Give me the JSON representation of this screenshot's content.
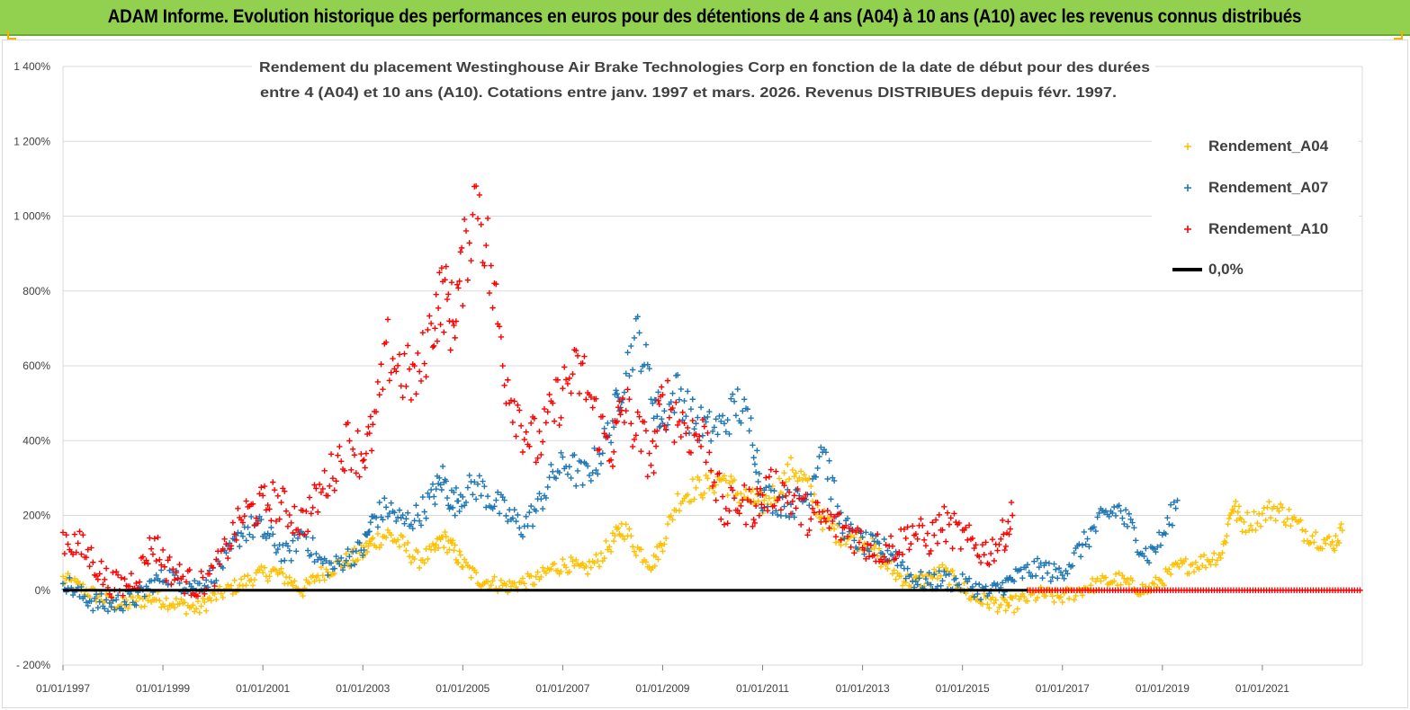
{
  "banner": {
    "title": "ADAM Informe. Evolution historique des performances en euros pour des détentions de 4 ans (A04) à 10 ans (A10) avec les revenus connus distribués"
  },
  "colors": {
    "banner_bg": "#92d050",
    "a04": "#ffc000",
    "a07": "#1f77b4",
    "a10": "#ff0000",
    "zero_line": "#000000",
    "grid": "#d9d9d9"
  },
  "chart_data": {
    "type": "scatter",
    "title_line1": "Rendement du placement Westinghouse Air Brake Technologies Corp en fonction de la date de début pour des durées",
    "title_line2": "entre 4 (A04) et 10 ans (A10). Cotations entre janv. 1997 et mars. 2026. Revenus DISTRIBUES depuis févr. 1997.",
    "x_ticks": [
      "01/01/1997",
      "01/01/1999",
      "01/01/2001",
      "01/01/2003",
      "01/01/2005",
      "01/01/2007",
      "01/01/2009",
      "01/01/2011",
      "01/01/2013",
      "01/01/2015",
      "01/01/2017",
      "01/01/2019",
      "01/01/2021"
    ],
    "x_range": [
      1997.0,
      2023.0
    ],
    "y_ticks": [
      "- 200%",
      "0%",
      "200%",
      "400%",
      "600%",
      "800%",
      "1 000%",
      "1 200%",
      "1 400%"
    ],
    "y_range": [
      -200,
      1400
    ],
    "legend": [
      {
        "key": "a04",
        "label": "Rendement_A04",
        "marker": "+"
      },
      {
        "key": "a07",
        "label": "Rendement_A07",
        "marker": "+"
      },
      {
        "key": "a10",
        "label": "Rendement_A10",
        "marker": "+"
      },
      {
        "key": "zero",
        "label": "0,0%",
        "marker": "line"
      }
    ],
    "series": [
      {
        "name": "Rendement_A04",
        "key": "a04",
        "x": [
          1997.0,
          1997.3,
          1997.6,
          1997.9,
          1998.2,
          1998.5,
          1998.8,
          1999.1,
          1999.4,
          1999.7,
          2000.0,
          2000.3,
          2000.6,
          2000.9,
          2001.2,
          2001.5,
          2001.8,
          2002.1,
          2002.4,
          2002.7,
          2003.0,
          2003.2,
          2003.5,
          2003.8,
          2004.1,
          2004.4,
          2004.6,
          2004.8,
          2005.0,
          2005.3,
          2005.6,
          2005.9,
          2006.2,
          2006.5,
          2006.8,
          2007.1,
          2007.4,
          2007.7,
          2008.0,
          2008.2,
          2008.5,
          2008.8,
          2009.0,
          2009.3,
          2009.6,
          2009.9,
          2010.2,
          2010.5,
          2010.8,
          2011.0,
          2011.3,
          2011.6,
          2011.9,
          2012.2,
          2012.5,
          2012.8,
          2013.1,
          2013.4,
          2013.7,
          2014.0,
          2014.3,
          2014.6,
          2014.9,
          2015.2,
          2015.5,
          2015.8,
          2016.0,
          2016.3,
          2016.6,
          2016.9,
          2017.2,
          2017.5,
          2017.8,
          2018.1,
          2018.4,
          2018.7,
          2019.0,
          2019.3,
          2019.6,
          2019.9,
          2020.2,
          2020.4,
          2020.6,
          2020.9,
          2021.2,
          2021.5,
          2021.8,
          2022.1,
          2022.4,
          2022.6
        ],
        "y": [
          30,
          10,
          -10,
          -30,
          -40,
          -30,
          -20,
          -30,
          -40,
          -50,
          -20,
          0,
          20,
          40,
          50,
          30,
          0,
          40,
          60,
          80,
          100,
          130,
          150,
          120,
          80,
          100,
          140,
          110,
          70,
          30,
          20,
          10,
          20,
          30,
          60,
          70,
          50,
          80,
          130,
          170,
          110,
          70,
          130,
          240,
          270,
          280,
          300,
          260,
          240,
          230,
          270,
          330,
          280,
          190,
          150,
          140,
          130,
          80,
          40,
          20,
          30,
          50,
          20,
          -20,
          -30,
          -40,
          -40,
          -20,
          -10,
          -20,
          -10,
          10,
          20,
          30,
          10,
          0,
          30,
          60,
          70,
          80,
          100,
          230,
          180,
          190,
          220,
          200,
          160,
          140,
          120,
          160
        ]
      },
      {
        "name": "Rendement_A07",
        "key": "a07",
        "x": [
          1997.0,
          1997.3,
          1997.6,
          1997.9,
          1998.2,
          1998.5,
          1998.8,
          1999.1,
          1999.4,
          1999.7,
          2000.0,
          2000.3,
          2000.6,
          2000.9,
          2001.2,
          2001.5,
          2001.8,
          2002.1,
          2002.4,
          2002.7,
          2003.0,
          2003.2,
          2003.5,
          2003.8,
          2004.1,
          2004.4,
          2004.6,
          2004.8,
          2005.0,
          2005.3,
          2005.6,
          2005.9,
          2006.2,
          2006.5,
          2006.8,
          2007.1,
          2007.4,
          2007.7,
          2008.0,
          2008.2,
          2008.5,
          2008.8,
          2009.0,
          2009.3,
          2009.6,
          2009.9,
          2010.2,
          2010.5,
          2010.8,
          2011.0,
          2011.3,
          2011.6,
          2011.9,
          2012.2,
          2012.5,
          2012.8,
          2013.1,
          2013.4,
          2013.7,
          2014.0,
          2014.3,
          2014.6,
          2014.9,
          2015.2,
          2015.5,
          2015.8,
          2016.0,
          2016.3,
          2016.6,
          2016.9,
          2017.2,
          2017.5,
          2017.8,
          2018.1,
          2018.4,
          2018.7,
          2019.0,
          2019.3
        ],
        "y": [
          30,
          -10,
          -30,
          -40,
          -30,
          -20,
          20,
          40,
          20,
          10,
          40,
          90,
          160,
          170,
          130,
          90,
          160,
          80,
          60,
          90,
          110,
          190,
          220,
          180,
          200,
          250,
          300,
          230,
          260,
          280,
          240,
          200,
          170,
          220,
          310,
          340,
          300,
          350,
          450,
          560,
          690,
          520,
          450,
          540,
          460,
          430,
          440,
          500,
          420,
          250,
          240,
          230,
          250,
          400,
          200,
          140,
          120,
          110,
          90,
          30,
          20,
          30,
          20,
          10,
          -10,
          10,
          30,
          50,
          60,
          40,
          80,
          140,
          190,
          220,
          160,
          90,
          140,
          240
        ]
      },
      {
        "name": "Rendement_A10",
        "key": "a10",
        "x": [
          1997.0,
          1997.3,
          1997.6,
          1997.9,
          1998.2,
          1998.5,
          1998.8,
          1999.1,
          1999.4,
          1999.7,
          2000.0,
          2000.3,
          2000.6,
          2000.9,
          2001.2,
          2001.5,
          2001.8,
          2002.1,
          2002.4,
          2002.7,
          2003.0,
          2003.2,
          2003.5,
          2003.8,
          2004.1,
          2004.4,
          2004.6,
          2004.8,
          2005.0,
          2005.3,
          2005.6,
          2005.9,
          2006.2,
          2006.5,
          2006.8,
          2007.1,
          2007.4,
          2007.7,
          2008.0,
          2008.2,
          2008.5,
          2008.8,
          2009.0,
          2009.3,
          2009.6,
          2009.9,
          2010.2,
          2010.5,
          2010.8,
          2011.0,
          2011.3,
          2011.6,
          2011.9,
          2012.2,
          2012.5,
          2012.8,
          2013.1,
          2013.4,
          2013.7,
          2014.0,
          2014.3,
          2014.6,
          2014.9,
          2015.2,
          2015.5,
          2015.8,
          2016.0
        ],
        "y": [
          140,
          120,
          80,
          20,
          10,
          40,
          130,
          60,
          30,
          10,
          40,
          120,
          200,
          220,
          240,
          210,
          180,
          250,
          320,
          400,
          360,
          420,
          640,
          580,
          560,
          720,
          800,
          720,
          860,
          1080,
          800,
          560,
          440,
          380,
          480,
          560,
          580,
          440,
          380,
          500,
          420,
          350,
          520,
          460,
          420,
          400,
          200,
          240,
          220,
          250,
          280,
          240,
          200,
          190,
          170,
          150,
          120,
          110,
          120,
          160,
          130,
          180,
          150,
          120,
          100,
          140,
          200
        ]
      }
    ],
    "a10_flat_after": 2016.3
  }
}
